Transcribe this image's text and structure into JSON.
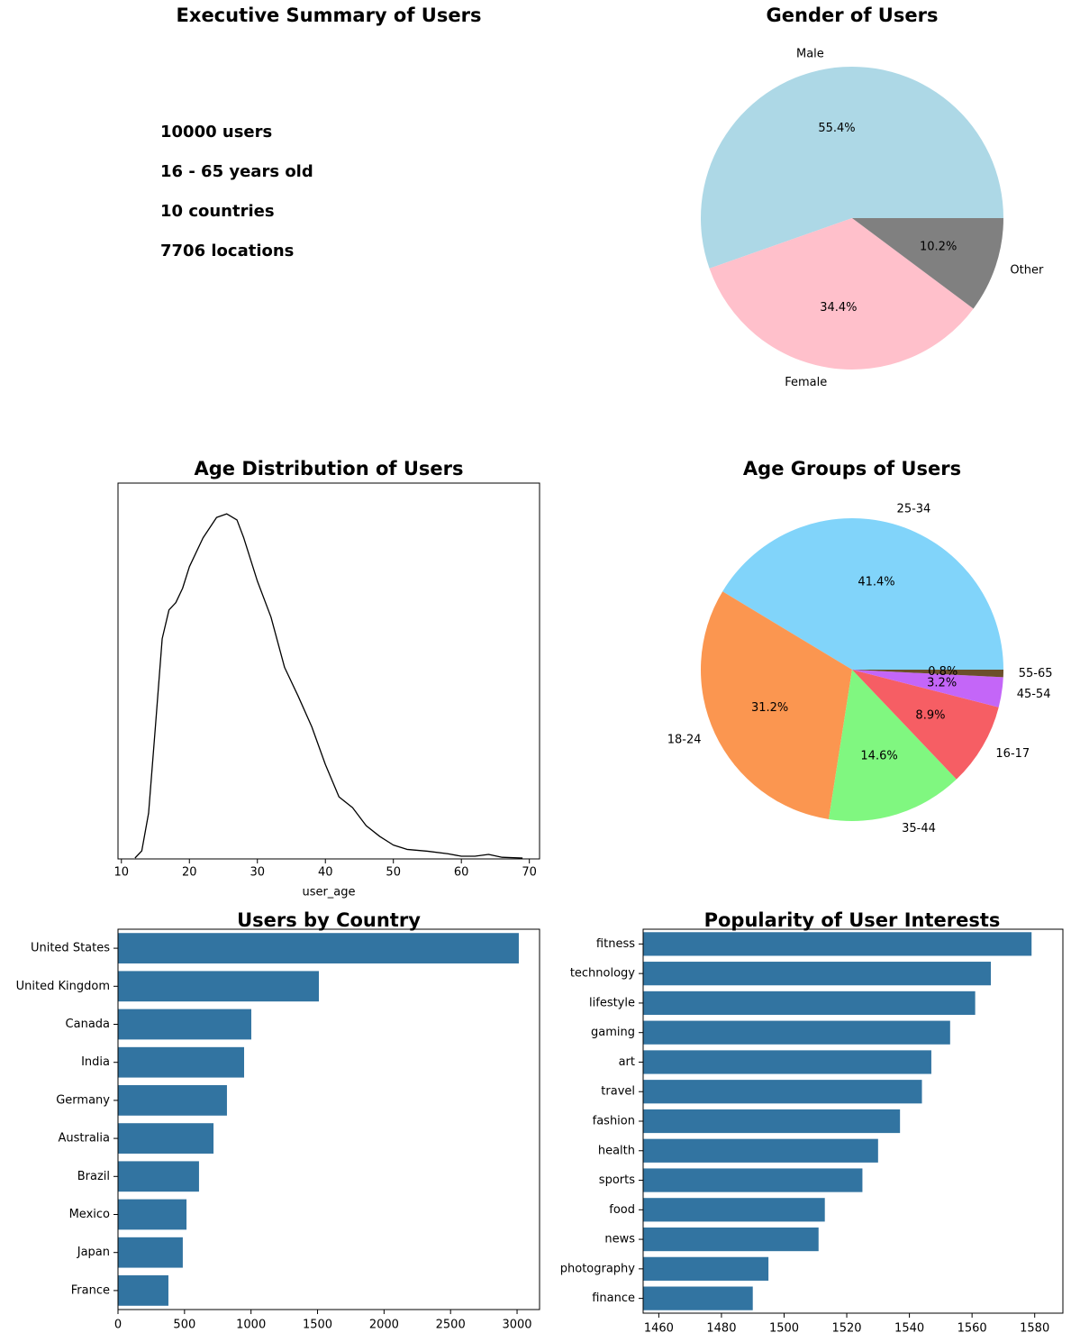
{
  "chart_data": [
    {
      "type": "text",
      "title": "Executive Summary of Users",
      "lines": [
        "10000 users",
        "16 - 65 years old",
        "10 countries",
        "7706 locations"
      ]
    },
    {
      "type": "pie",
      "title": "Gender of Users",
      "categories": [
        "Male",
        "Female",
        "Other"
      ],
      "values": [
        55.4,
        34.4,
        10.2
      ],
      "value_labels": [
        "55.4%",
        "34.4%",
        "10.2%"
      ],
      "colors": [
        "#add8e6",
        "#ffc0cb",
        "#808080"
      ]
    },
    {
      "type": "line",
      "title": "Age Distribution of Users",
      "xlabel": "user_age",
      "x": [
        12,
        13,
        14,
        15,
        16,
        17,
        18,
        19,
        20,
        22,
        24,
        25.5,
        27,
        28,
        30,
        32,
        34,
        36,
        38,
        40,
        42,
        44,
        46,
        48,
        50,
        52,
        55,
        58,
        60,
        62,
        64,
        66,
        69
      ],
      "values": [
        0,
        0.02,
        0.125,
        0.365,
        0.61,
        0.69,
        0.71,
        0.75,
        0.81,
        0.89,
        0.947,
        0.957,
        0.94,
        0.89,
        0.77,
        0.67,
        0.53,
        0.45,
        0.365,
        0.26,
        0.17,
        0.14,
        0.09,
        0.06,
        0.036,
        0.024,
        0.019,
        0.012,
        0.005,
        0.005,
        0.01,
        0.002,
        0
      ],
      "color": "#000000",
      "xlim": [
        9.5,
        71.5
      ],
      "xticks": [
        10,
        20,
        30,
        40,
        50,
        60,
        70
      ],
      "ylim": [
        0,
        1
      ]
    },
    {
      "type": "pie",
      "title": "Age Groups of Users",
      "categories": [
        "25-34",
        "18-24",
        "35-44",
        "16-17",
        "45-54",
        "55-65"
      ],
      "values": [
        41.4,
        31.2,
        14.6,
        8.9,
        3.2,
        0.8
      ],
      "value_labels": [
        "41.4%",
        "31.2%",
        "14.6%",
        "8.9%",
        "3.2%",
        "0.8%"
      ],
      "colors": [
        "#81d4fa",
        "#fb9650",
        "#80f780",
        "#f65e64",
        "#c466f8",
        "#6b4f2a"
      ]
    },
    {
      "type": "hbar",
      "title": "Users by Country",
      "categories": [
        "United States",
        "United Kingdom",
        "Canada",
        "India",
        "Germany",
        "Australia",
        "Brazil",
        "Mexico",
        "Japan",
        "France"
      ],
      "values": [
        3013,
        1510,
        1002,
        948,
        819,
        718,
        609,
        515,
        487,
        379
      ],
      "color": "#3274a1",
      "xlim": [
        0,
        3169
      ],
      "xticks": [
        0,
        500,
        1000,
        1500,
        2000,
        2500,
        3000
      ]
    },
    {
      "type": "hbar",
      "title": "Popularity of User Interests",
      "categories": [
        "fitness",
        "technology",
        "lifestyle",
        "gaming",
        "art",
        "travel",
        "fashion",
        "health",
        "sports",
        "food",
        "news",
        "photography",
        "finance"
      ],
      "values": [
        1579,
        1566,
        1561,
        1553,
        1547,
        1544,
        1537,
        1530,
        1525,
        1513,
        1511,
        1495,
        1490
      ],
      "color": "#3274a1",
      "xlim": [
        1455,
        1589
      ],
      "xticks": [
        1460,
        1480,
        1500,
        1520,
        1540,
        1560,
        1580
      ]
    }
  ]
}
